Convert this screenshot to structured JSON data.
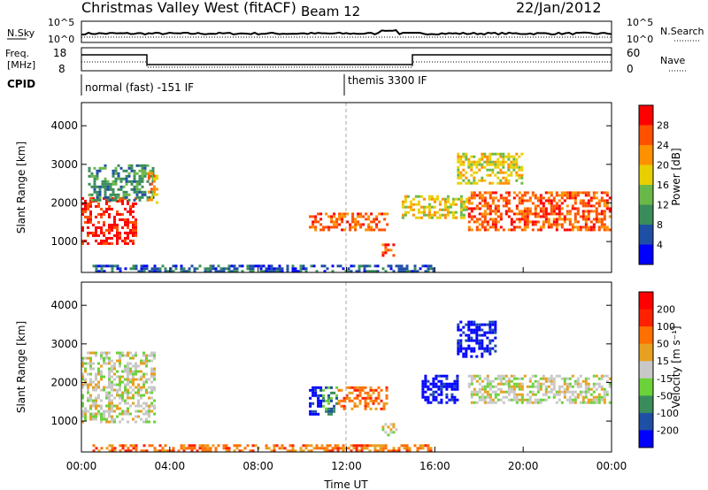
{
  "header": {
    "station": "Christmas Valley West (fitACF)",
    "beam": "Beam 12",
    "date": "22/Jan/2012"
  },
  "top_panels": {
    "nsky_label": "N.Sky",
    "nsky_ticks": [
      "10^5",
      "10^0"
    ],
    "nsearch_label": "N.Search",
    "nsearch_ticks": [
      "10^5",
      "10^0"
    ],
    "freq_label_1": "Freq.",
    "freq_label_2": "[MHz]",
    "freq_ticks": [
      "18",
      "8"
    ],
    "nave_ticks": [
      "60",
      "0"
    ],
    "nave_label": "Nave",
    "cpid_label": "CPID",
    "cpid_1": "normal (fast) -151 IF",
    "cpid_2": "themis 3300 IF"
  },
  "colors": {
    "power": [
      "#0000ff",
      "#1f4fa5",
      "#3a8d5a",
      "#6bb84a",
      "#e8d000",
      "#ff9000",
      "#ff5000",
      "#ff0000"
    ],
    "velocity": [
      "#0000ff",
      "#1f4fa5",
      "#3a8d5a",
      "#6bd23a",
      "#c8c8c8",
      "#e8a020",
      "#ff7000",
      "#ff2000",
      "#ff0000"
    ]
  },
  "chart_data": [
    {
      "type": "heatmap",
      "title": "Power",
      "ylabel": "Slant Range [km]",
      "ylim": [
        200,
        4600
      ],
      "yticks": [
        "1000",
        "2000",
        "3000",
        "4000"
      ],
      "xlim_hours": [
        0,
        24
      ],
      "colorbar_label": "Power [dB]",
      "colorbar_ticks": [
        "28",
        "24",
        "20",
        "16",
        "12",
        "8",
        "4"
      ],
      "regions": [
        {
          "t": [
            0.0,
            2.5
          ],
          "r": [
            950,
            2150
          ],
          "level": 7
        },
        {
          "t": [
            0.3,
            3.2
          ],
          "r": [
            2100,
            3000
          ],
          "level": 2
        },
        {
          "t": [
            3.0,
            3.4
          ],
          "r": [
            2000,
            2800
          ],
          "level": 5
        },
        {
          "t": [
            10.3,
            13.8
          ],
          "r": [
            1300,
            1750
          ],
          "level": 6
        },
        {
          "t": [
            13.6,
            14.2
          ],
          "r": [
            650,
            950
          ],
          "level": 6
        },
        {
          "t": [
            14.5,
            17.5
          ],
          "r": [
            1600,
            2200
          ],
          "level": 4
        },
        {
          "t": [
            17.5,
            24.0
          ],
          "r": [
            1300,
            2300
          ],
          "level": 6
        },
        {
          "t": [
            17.0,
            20.0
          ],
          "r": [
            2500,
            3300
          ],
          "level": 4
        },
        {
          "t": [
            0.5,
            16.0
          ],
          "r": [
            250,
            400
          ],
          "level": 1
        }
      ]
    },
    {
      "type": "heatmap",
      "title": "Velocity",
      "ylabel": "Slant Range [km]",
      "xlabel": "Time UT",
      "ylim": [
        200,
        4600
      ],
      "yticks": [
        "1000",
        "2000",
        "3000",
        "4000"
      ],
      "xlim_hours": [
        0,
        24
      ],
      "xticks": [
        "00:00",
        "04:00",
        "08:00",
        "12:00",
        "16:00",
        "20:00",
        "00:00"
      ],
      "colorbar_label": "Velocity [m s⁻¹]",
      "colorbar_ticks": [
        "200",
        "100",
        "50",
        "15",
        "-15",
        "-50",
        "-100",
        "-200"
      ],
      "regions": [
        {
          "t": [
            0.0,
            3.3
          ],
          "r": [
            950,
            2800
          ],
          "level": 4
        },
        {
          "t": [
            10.3,
            10.9
          ],
          "r": [
            1200,
            1900
          ],
          "level": 0
        },
        {
          "t": [
            10.9,
            11.6
          ],
          "r": [
            1200,
            1900
          ],
          "level": 2
        },
        {
          "t": [
            11.6,
            13.8
          ],
          "r": [
            1300,
            1900
          ],
          "level": 6
        },
        {
          "t": [
            15.4,
            17.0
          ],
          "r": [
            1500,
            2200
          ],
          "level": 0
        },
        {
          "t": [
            17.0,
            18.8
          ],
          "r": [
            2700,
            3600
          ],
          "level": 0
        },
        {
          "t": [
            17.5,
            24.0
          ],
          "r": [
            1500,
            2200
          ],
          "level": 4
        },
        {
          "t": [
            13.6,
            14.3
          ],
          "r": [
            650,
            950
          ],
          "level": 4
        },
        {
          "t": [
            0.5,
            16.0
          ],
          "r": [
            250,
            400
          ],
          "level": 6
        }
      ]
    }
  ]
}
